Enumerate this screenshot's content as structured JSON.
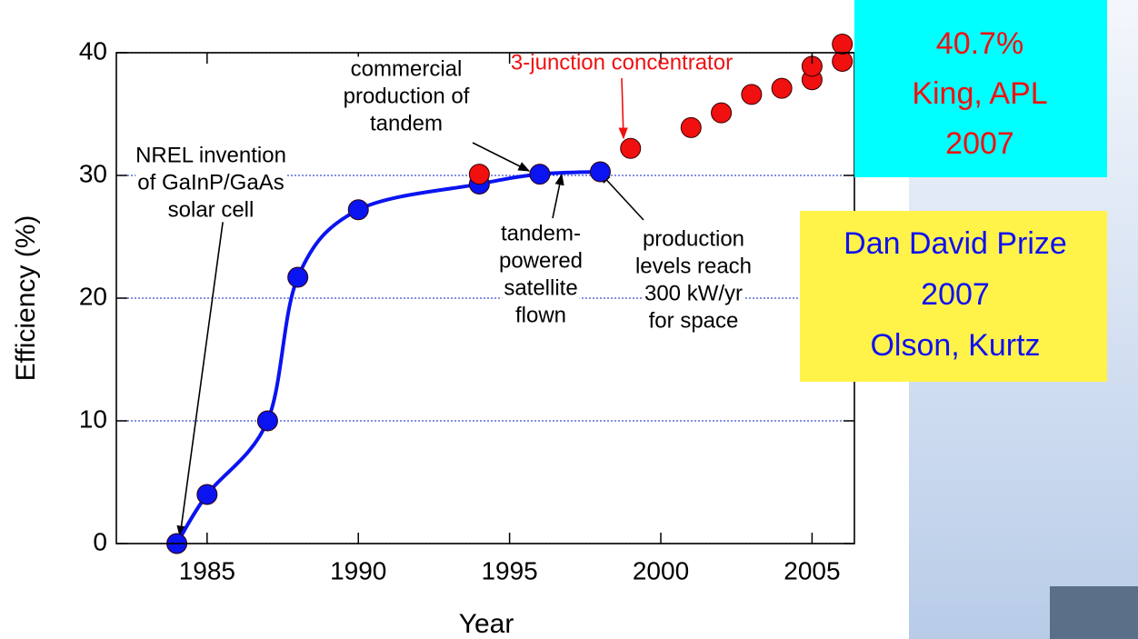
{
  "chart_data": {
    "type": "scatter",
    "x_label": "Year",
    "y_label": "Efficiency (%)",
    "xlim": [
      1982,
      2006.4
    ],
    "ylim": [
      0,
      40
    ],
    "xticks": [
      1985,
      1990,
      1995,
      2000,
      2005
    ],
    "yticks": [
      0,
      10,
      20,
      30,
      40
    ],
    "grid": true,
    "series": [
      {
        "color": "#0a14f0",
        "line": true,
        "x": [
          1984,
          1985,
          1987,
          1988,
          1990,
          1994,
          1996,
          1998
        ],
        "values": [
          0,
          4,
          10,
          21.7,
          27.2,
          29.3,
          30.1,
          30.3
        ]
      },
      {
        "color": "#f01010",
        "line": false,
        "x": [
          1994,
          1999,
          2001,
          2002,
          2003,
          2004,
          2005,
          2005,
          2006,
          2006
        ],
        "values": [
          30.1,
          32.2,
          33.9,
          35.1,
          36.6,
          37.1,
          37.8,
          38.9,
          39.3,
          40.7
        ]
      }
    ],
    "annotations": [
      {
        "lines": [
          "NREL invention",
          "of GaInP/GaAs",
          "solar cell"
        ],
        "color": "#000000"
      },
      {
        "lines": [
          "commercial",
          "production of",
          "tandem"
        ],
        "color": "#000000"
      },
      {
        "lines": [
          "3-junction concentrator"
        ],
        "color": "#f01010"
      },
      {
        "lines": [
          "tandem-",
          "powered",
          "satellite",
          "flown"
        ],
        "color": "#000000"
      },
      {
        "lines": [
          "production",
          "levels reach",
          "300 kW/yr",
          "for space"
        ],
        "color": "#000000"
      }
    ],
    "callouts": [
      {
        "lines": [
          "40.7%",
          "King, APL",
          "2007"
        ],
        "color": "#f01010",
        "background": "#00ffff"
      },
      {
        "lines": [
          "Dan David Prize",
          "2007",
          "Olson, Kurtz"
        ],
        "color": "#1010f0",
        "background": "#fff34a"
      }
    ]
  }
}
